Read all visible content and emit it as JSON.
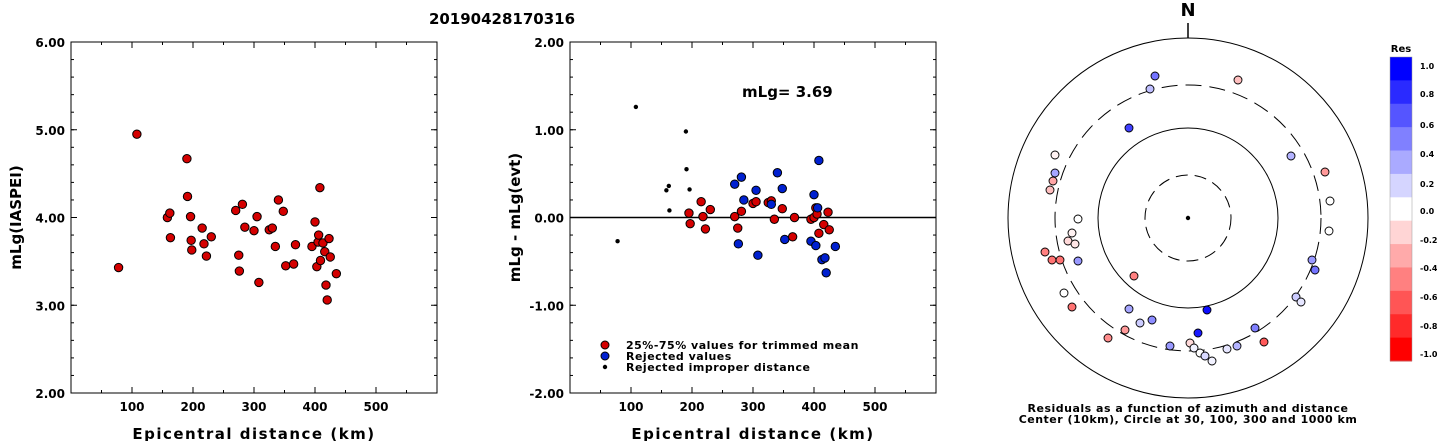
{
  "title": "20190428170316",
  "chart_data": [
    {
      "type": "scatter",
      "ylabel": "mLg(IASPEI)",
      "xlabel": "Epicentral distance (km)",
      "xlim": [
        0,
        600
      ],
      "ylim": [
        2.0,
        6.0
      ],
      "xticks": [
        "100",
        "200",
        "300",
        "400",
        "500"
      ],
      "yticks": [
        "2.00",
        "3.00",
        "4.00",
        "5.00",
        "6.00"
      ],
      "points": [
        [
          78,
          3.43
        ],
        [
          108,
          4.95
        ],
        [
          158,
          4.0
        ],
        [
          162,
          4.05
        ],
        [
          163,
          3.77
        ],
        [
          190,
          4.67
        ],
        [
          191,
          4.24
        ],
        [
          196,
          4.01
        ],
        [
          197,
          3.74
        ],
        [
          198,
          3.63
        ],
        [
          215,
          3.88
        ],
        [
          218,
          3.7
        ],
        [
          222,
          3.56
        ],
        [
          230,
          3.78
        ],
        [
          270,
          4.08
        ],
        [
          275,
          3.57
        ],
        [
          276,
          3.39
        ],
        [
          281,
          4.15
        ],
        [
          285,
          3.89
        ],
        [
          300,
          3.85
        ],
        [
          305,
          4.01
        ],
        [
          308,
          3.26
        ],
        [
          325,
          3.86
        ],
        [
          330,
          3.88
        ],
        [
          335,
          3.67
        ],
        [
          340,
          4.2
        ],
        [
          348,
          4.07
        ],
        [
          352,
          3.45
        ],
        [
          365,
          3.47
        ],
        [
          368,
          3.69
        ],
        [
          395,
          3.67
        ],
        [
          400,
          3.95
        ],
        [
          403,
          3.44
        ],
        [
          405,
          3.72
        ],
        [
          406,
          3.8
        ],
        [
          408,
          4.34
        ],
        [
          409,
          3.51
        ],
        [
          413,
          3.71
        ],
        [
          416,
          3.61
        ],
        [
          418,
          3.23
        ],
        [
          420,
          3.06
        ],
        [
          423,
          3.76
        ],
        [
          425,
          3.55
        ],
        [
          435,
          3.36
        ]
      ]
    },
    {
      "type": "scatter",
      "ylabel": "mLg - mLg(evt)",
      "xlabel": "Epicentral distance (km)",
      "annotation": "mLg= 3.69",
      "xlim": [
        0,
        600
      ],
      "ylim": [
        -2.0,
        2.0
      ],
      "xticks": [
        "100",
        "200",
        "300",
        "400",
        "500"
      ],
      "yticks": [
        "-2.00",
        "-1.00",
        "0.00",
        "1.00",
        "2.00"
      ],
      "legend": {
        "placement": "bottom-left",
        "entries": [
          "25%-75% values for trimmed mean",
          "Rejected values",
          "Rejected improper distance"
        ]
      },
      "series": [
        {
          "name": "25%-75% values for trimmed mean",
          "color": "#d40000",
          "points": [
            [
              195,
              0.05
            ],
            [
              197,
              -0.07
            ],
            [
              215,
              0.18
            ],
            [
              218,
              0.01
            ],
            [
              222,
              -0.13
            ],
            [
              230,
              0.09
            ],
            [
              270,
              0.01
            ],
            [
              275,
              -0.12
            ],
            [
              281,
              0.07
            ],
            [
              300,
              0.16
            ],
            [
              305,
              0.18
            ],
            [
              325,
              0.17
            ],
            [
              330,
              0.19
            ],
            [
              335,
              -0.02
            ],
            [
              348,
              0.1
            ],
            [
              368,
              0.0
            ],
            [
              395,
              -0.02
            ],
            [
              400,
              0.0
            ],
            [
              403,
              0.11
            ],
            [
              405,
              0.04
            ],
            [
              408,
              -0.18
            ],
            [
              416,
              -0.08
            ],
            [
              423,
              0.06
            ],
            [
              425,
              -0.14
            ],
            [
              365,
              -0.22
            ]
          ]
        },
        {
          "name": "Rejected values",
          "color": "#0020d0",
          "points": [
            [
              270,
              0.38
            ],
            [
              276,
              -0.3
            ],
            [
              281,
              0.46
            ],
            [
              285,
              0.2
            ],
            [
              305,
              0.31
            ],
            [
              308,
              -0.43
            ],
            [
              330,
              0.15
            ],
            [
              340,
              0.51
            ],
            [
              348,
              0.33
            ],
            [
              352,
              -0.25
            ],
            [
              395,
              -0.27
            ],
            [
              400,
              0.26
            ],
            [
              403,
              -0.32
            ],
            [
              406,
              0.11
            ],
            [
              408,
              0.65
            ],
            [
              413,
              -0.48
            ],
            [
              418,
              -0.46
            ],
            [
              420,
              -0.63
            ],
            [
              435,
              -0.33
            ]
          ]
        },
        {
          "name": "Rejected improper distance",
          "color": "#000000",
          "points": [
            [
              78,
              -0.27
            ],
            [
              108,
              1.26
            ],
            [
              158,
              0.31
            ],
            [
              162,
              0.36
            ],
            [
              163,
              0.08
            ],
            [
              190,
              0.98
            ],
            [
              191,
              0.55
            ],
            [
              196,
              0.32
            ]
          ]
        }
      ]
    },
    {
      "type": "polar-scatter",
      "north_label": "N",
      "caption": [
        "Residuals as a function of azimuth and distance",
        "Center (10km), Circle at 30, 100, 300 and 1000 km"
      ],
      "colorbar": {
        "title": "Res",
        "ticks": [
          "1.0",
          "0.8",
          "0.6",
          "0.4",
          "0.2",
          "0.0",
          "-0.2",
          "-0.4",
          "-0.6",
          "-0.8",
          "-1.0"
        ],
        "colors": [
          "#0000ff",
          "#2a2aff",
          "#5555ff",
          "#8080ff",
          "#aaaaff",
          "#d5d5ff",
          "#ffffff",
          "#ffd5d5",
          "#ffaaaa",
          "#ff8080",
          "#ff5555",
          "#ff2a2a",
          "#ff0000"
        ]
      },
      "points": [
        [
          1155,
          76,
          0.55
        ],
        [
          1150,
          89,
          0.25
        ],
        [
          1238,
          80,
          -0.25
        ],
        [
          1129,
          128,
          0.75
        ],
        [
          1055,
          155,
          -0.05
        ],
        [
          1055,
          173,
          0.35
        ],
        [
          1053,
          181,
          -0.35
        ],
        [
          1050,
          190,
          -0.25
        ],
        [
          1078,
          219,
          0.0
        ],
        [
          1072,
          233,
          -0.05
        ],
        [
          1068,
          241,
          -0.15
        ],
        [
          1075,
          244,
          -0.1
        ],
        [
          1045,
          252,
          -0.5
        ],
        [
          1052,
          260,
          -0.55
        ],
        [
          1060,
          260,
          -0.55
        ],
        [
          1078,
          261,
          0.4
        ],
        [
          1134,
          276,
          -0.5
        ],
        [
          1064,
          293,
          0.0
        ],
        [
          1291,
          156,
          0.3
        ],
        [
          1325,
          172,
          -0.4
        ],
        [
          1330,
          201,
          0.0
        ],
        [
          1329,
          231,
          0.0
        ],
        [
          1312,
          260,
          0.4
        ],
        [
          1315,
          270,
          0.55
        ],
        [
          1296,
          297,
          0.2
        ],
        [
          1301,
          302,
          0.1
        ],
        [
          1072,
          307,
          -0.55
        ],
        [
          1129,
          309,
          0.35
        ],
        [
          1152,
          320,
          0.45
        ],
        [
          1140,
          323,
          0.2
        ],
        [
          1207,
          310,
          0.95
        ],
        [
          1255,
          328,
          0.5
        ],
        [
          1125,
          330,
          -0.4
        ],
        [
          1198,
          333,
          0.9
        ],
        [
          1108,
          338,
          -0.45
        ],
        [
          1170,
          346,
          0.4
        ],
        [
          1190,
          343,
          -0.15
        ],
        [
          1194,
          348,
          0.05
        ],
        [
          1200,
          353,
          0.0
        ],
        [
          1205,
          356,
          0.15
        ],
        [
          1212,
          361,
          0.05
        ],
        [
          1237,
          346,
          0.3
        ],
        [
          1264,
          342,
          -0.65
        ],
        [
          1227,
          349,
          0.1
        ]
      ]
    }
  ]
}
